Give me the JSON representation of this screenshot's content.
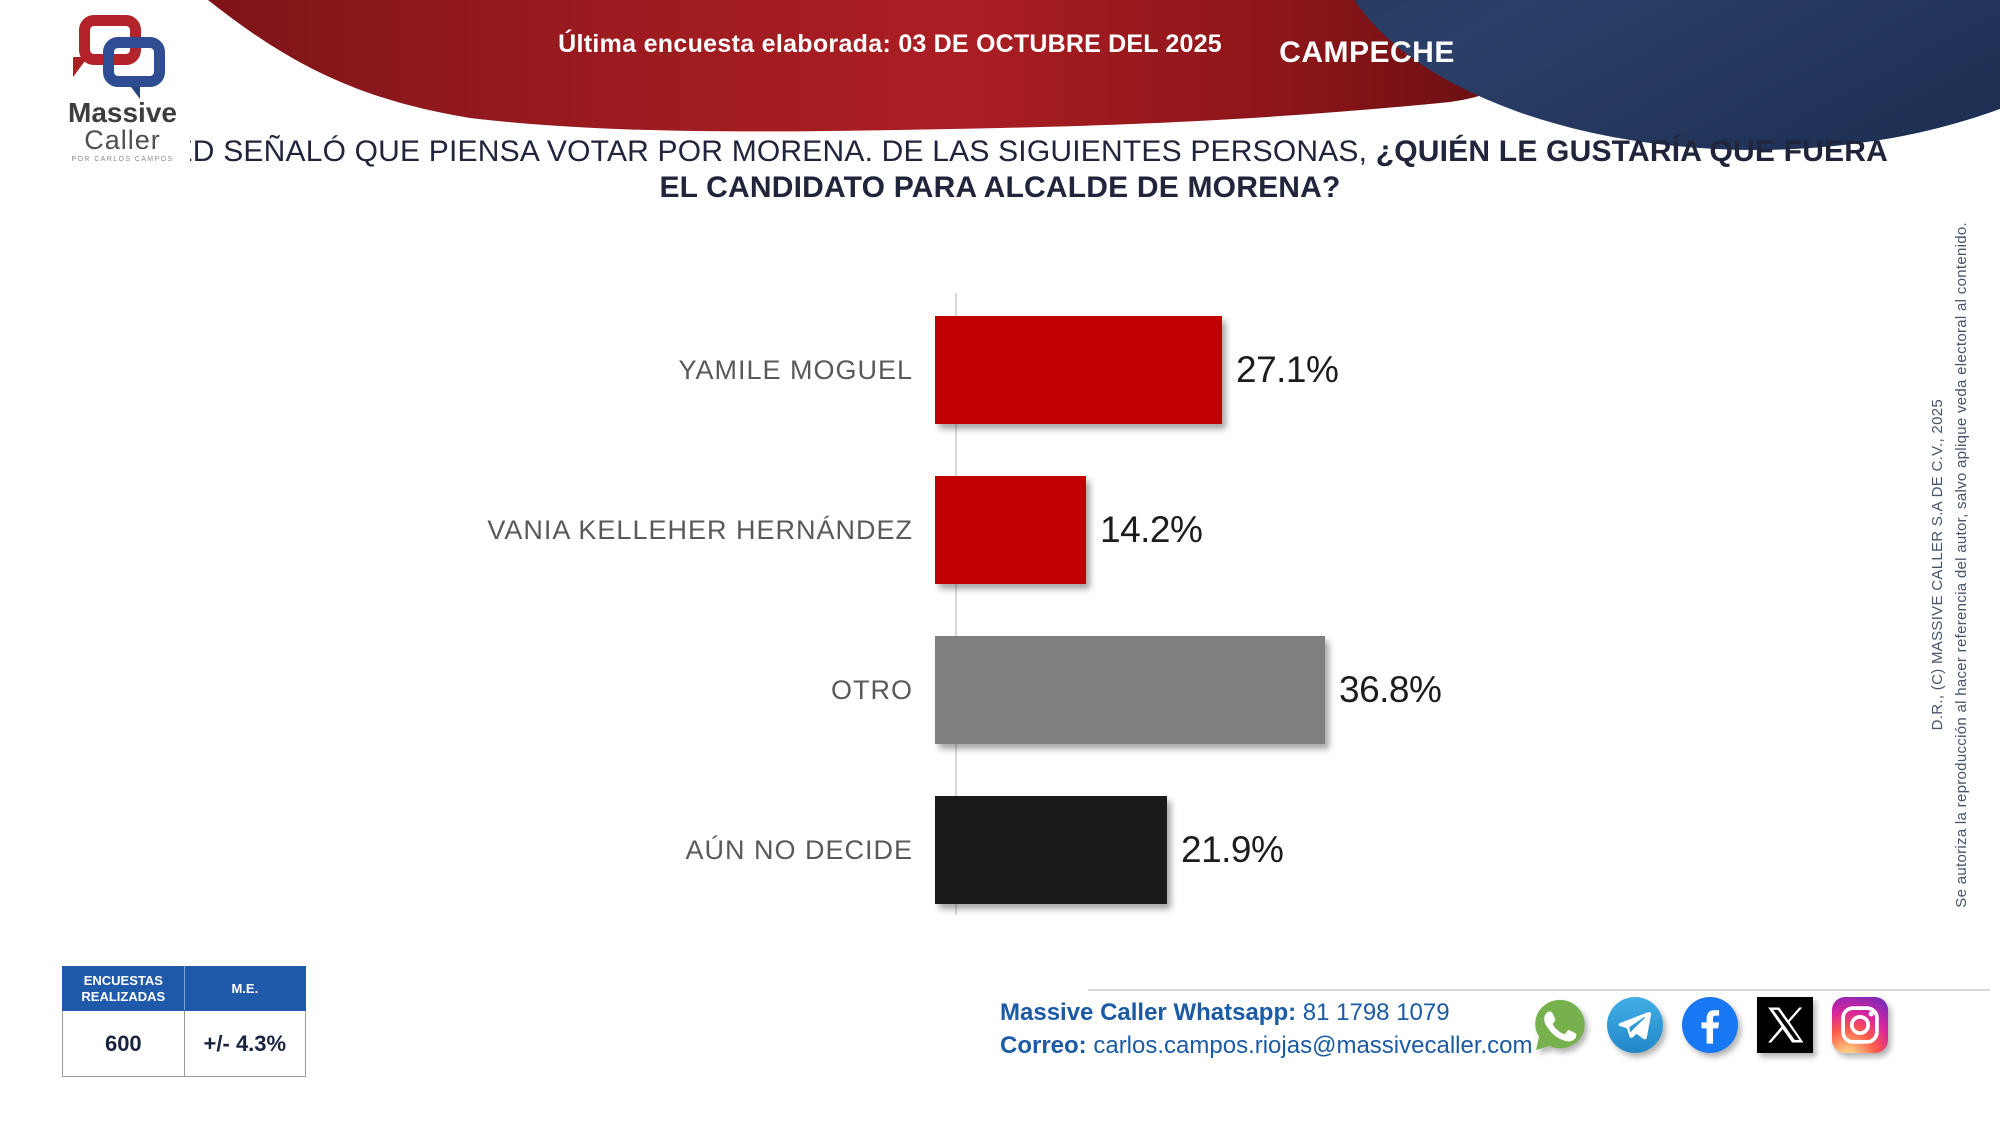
{
  "header": {
    "logo": {
      "name_top": "Massive",
      "name_bottom": "Caller",
      "tagline": "POR CARLOS CAMPOS"
    },
    "banner_label": "Última encuesta elaborada:",
    "banner_date": "03 DE OCTUBRE DEL 2025",
    "region": "CAMPECHE",
    "banner_color": "#a81d22",
    "region_color": "#21355c"
  },
  "question": {
    "line1_normal": "USTED SEÑALÓ QUE PIENSA VOTAR POR MORENA. DE LAS SIGUIENTES PERSONAS, ",
    "line1_bold": "¿QUIÉN LE GUSTARÍA QUE FUERA",
    "line2_bold": "EL CANDIDATO PARA ALCALDE DE MORENA?"
  },
  "chart_data": {
    "type": "bar",
    "orientation": "horizontal",
    "categories": [
      "YAMILE MOGUEL",
      "VANIA KELLEHER HERNÁNDEZ",
      "OTRO",
      "AÚN NO DECIDE"
    ],
    "values": [
      27.1,
      14.2,
      36.8,
      21.9
    ],
    "value_labels": [
      "27.1%",
      "14.2%",
      "36.8%",
      "21.9%"
    ],
    "bar_colors": [
      "#c00000",
      "#c00000",
      "#7f7f7f",
      "#1a1a1a"
    ],
    "xlim": [
      0,
      40
    ],
    "grid": false,
    "legend": false,
    "title": "¿Quién le gustaría que fuera el candidato para Alcalde de Morena?"
  },
  "stats_table": {
    "headers": [
      "ENCUESTAS REALIZADAS",
      "M.E."
    ],
    "values": [
      "600",
      "+/- 4.3%"
    ]
  },
  "contact": {
    "whatsapp_label": "Massive Caller Whatsapp:",
    "whatsapp_number": " 81 1798 1079",
    "email_label": "Correo:",
    "email": " carlos.campos.riojas@massivecaller.com"
  },
  "social_icons": [
    "whatsapp",
    "telegram",
    "facebook",
    "x",
    "instagram"
  ],
  "copyright": {
    "line1": "D.R., (C) MASSIVE CALLER S.A DE C.V., 2025",
    "line2": "Se autoriza la reproducción al hacer referencia del autor, salvo aplique veda electoral al contenido."
  }
}
